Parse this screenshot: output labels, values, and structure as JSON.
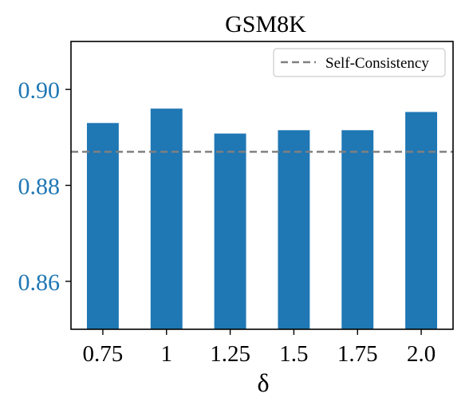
{
  "chart_data": {
    "type": "bar",
    "title": "GSM8K",
    "xlabel": "δ",
    "ylabel": "",
    "categories": [
      "0.75",
      "1",
      "1.25",
      "1.5",
      "1.75",
      "2.0"
    ],
    "values": [
      0.893,
      0.896,
      0.8908,
      0.8915,
      0.8915,
      0.8953
    ],
    "ylim": [
      0.85,
      0.91
    ],
    "yticks": [
      0.86,
      0.88,
      0.9
    ],
    "ytick_labels": [
      "0.86",
      "0.88",
      "0.90"
    ],
    "reference_line": {
      "name": "Self-Consistency",
      "value": 0.887,
      "style": "dashed"
    },
    "legend": {
      "entries": [
        "Self-Consistency"
      ],
      "placement": "top-right"
    },
    "grid": false
  },
  "colors": {
    "bar": "#1f77b4",
    "ytick_text": "#1f77b4",
    "reference_line": "#808080",
    "axis": "#000000",
    "text": "#000000"
  }
}
